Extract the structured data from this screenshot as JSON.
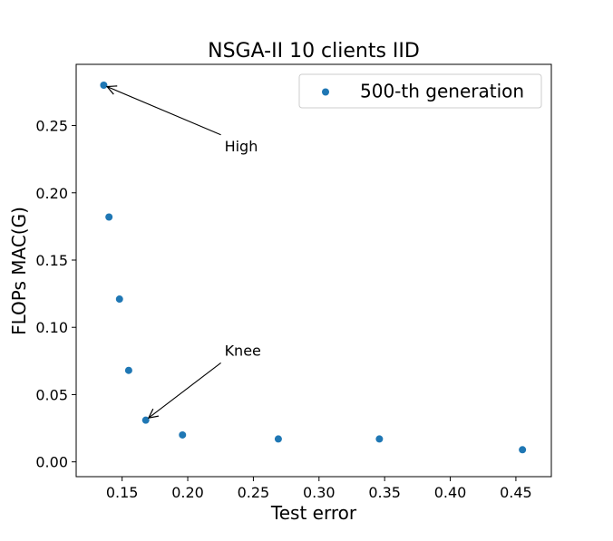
{
  "chart_data": {
    "type": "scatter",
    "title": "NSGA-II 10 clients IID",
    "xlabel": "Test error",
    "ylabel": "FLOPs MAC(G)",
    "xlim": [
      0.115,
      0.477
    ],
    "ylim": [
      -0.011,
      0.2955
    ],
    "xticks": [
      0.15,
      0.2,
      0.25,
      0.3,
      0.35,
      0.4,
      0.45
    ],
    "xtick_labels": [
      "0.15",
      "0.20",
      "0.25",
      "0.30",
      "0.35",
      "0.40",
      "0.45"
    ],
    "yticks": [
      0.0,
      0.05,
      0.1,
      0.15,
      0.2,
      0.25
    ],
    "ytick_labels": [
      "0.00",
      "0.05",
      "0.10",
      "0.15",
      "0.20",
      "0.25"
    ],
    "grid": false,
    "legend_position": "top-right",
    "series": [
      {
        "name": "500-th generation",
        "color": "#1f77b4",
        "points": [
          {
            "x": 0.136,
            "y": 0.28
          },
          {
            "x": 0.14,
            "y": 0.182
          },
          {
            "x": 0.148,
            "y": 0.121
          },
          {
            "x": 0.155,
            "y": 0.068
          },
          {
            "x": 0.168,
            "y": 0.031
          },
          {
            "x": 0.196,
            "y": 0.02
          },
          {
            "x": 0.269,
            "y": 0.017
          },
          {
            "x": 0.346,
            "y": 0.017
          },
          {
            "x": 0.455,
            "y": 0.009
          }
        ]
      }
    ],
    "annotations": [
      {
        "text": "High",
        "point": {
          "x": 0.136,
          "y": 0.28
        },
        "text_at": {
          "x": 0.228,
          "y": 0.231
        }
      },
      {
        "text": "Knee",
        "point": {
          "x": 0.168,
          "y": 0.031
        },
        "text_at": {
          "x": 0.228,
          "y": 0.079
        }
      }
    ]
  }
}
